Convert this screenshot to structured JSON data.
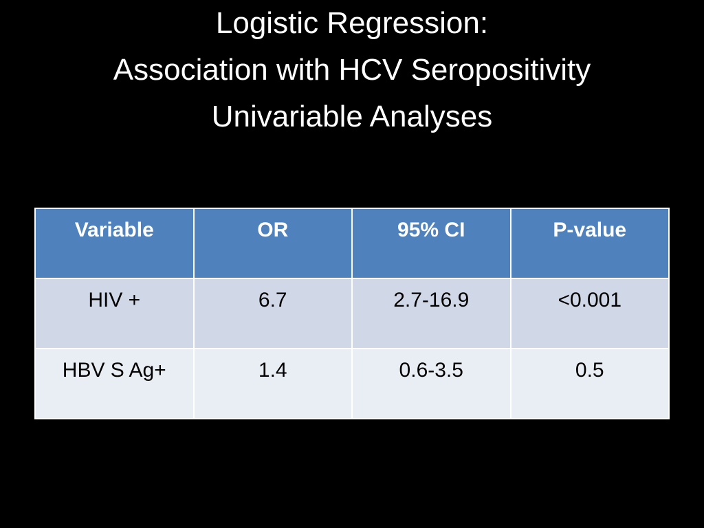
{
  "title": {
    "line1": "Logistic Regression:",
    "line2": "Association with HCV Seropositivity",
    "line3": "Univariable Analyses"
  },
  "table": {
    "headers": [
      "Variable",
      "OR",
      "95% CI",
      "P-value"
    ],
    "rows": [
      [
        "HIV +",
        "6.7",
        "2.7-16.9",
        "<0.001"
      ],
      [
        "HBV S Ag+",
        "1.4",
        "0.6-3.5",
        "0.5"
      ]
    ]
  },
  "colors": {
    "background": "#000000",
    "header_fill": "#4f81bd",
    "row1_fill": "#d0d8e8",
    "row2_fill": "#e9edf4"
  }
}
